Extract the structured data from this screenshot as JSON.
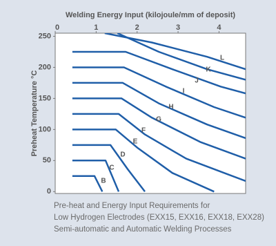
{
  "chart_data": {
    "type": "line",
    "xlabel": "Welding Energy Input (kilojoule/mm of deposit)",
    "ylabel": "Preheat Temperature °C",
    "caption": [
      "Pre-heat and Energy Input Requirements for",
      "Low Hydrogen Electrodes (EXX15, EXX16, EXX18, EXX28)",
      "Semi-automatic and Automatic Welding Processes"
    ],
    "xlim": [
      0,
      4.65
    ],
    "xticks": [
      0,
      1,
      2,
      3,
      4
    ],
    "ylim": [
      -3,
      255
    ],
    "yticks": [
      0,
      50,
      100,
      150,
      200,
      250
    ],
    "color": "#1f5ea8",
    "series": [
      {
        "name": "B",
        "x": [
          0.42,
          0.96,
          1.15
        ],
        "values": [
          25,
          25,
          0
        ]
      },
      {
        "name": "C",
        "x": [
          0.42,
          1.23,
          1.55
        ],
        "values": [
          50,
          50,
          0
        ]
      },
      {
        "name": "D",
        "x": [
          0.42,
          1.35,
          1.77,
          2.19
        ],
        "values": [
          75,
          75,
          36,
          0
        ]
      },
      {
        "name": "E",
        "x": [
          0.42,
          1.48,
          2.02,
          2.86,
          3.88
        ],
        "values": [
          100,
          100,
          70,
          30,
          0
        ]
      },
      {
        "name": "F",
        "x": [
          0.42,
          1.55,
          2.19,
          3.2,
          4.65
        ],
        "values": [
          125,
          125,
          92,
          53,
          17
        ]
      },
      {
        "name": "G",
        "x": [
          0.42,
          1.62,
          2.36,
          3.54,
          4.65
        ],
        "values": [
          150,
          150,
          119,
          80,
          53
        ]
      },
      {
        "name": "H",
        "x": [
          0.42,
          1.65,
          2.53,
          3.71,
          4.65
        ],
        "values": [
          175,
          175,
          142,
          108,
          86
        ]
      },
      {
        "name": "I",
        "x": [
          0.42,
          1.68,
          2.7,
          3.88,
          4.65
        ],
        "values": [
          200,
          200,
          169,
          136,
          119
        ]
      },
      {
        "name": "J",
        "x": [
          0.42,
          1.72,
          2.86,
          4.04,
          4.65
        ],
        "values": [
          225,
          225,
          197,
          169,
          158
        ]
      },
      {
        "name": "K",
        "x": [
          1.52,
          2.53,
          3.71,
          4.65
        ],
        "values": [
          255,
          225,
          197,
          180
        ]
      },
      {
        "name": "L",
        "x": [
          1.21,
          2.36,
          3.71,
          4.65
        ],
        "values": [
          255,
          240,
          217,
          197
        ]
      }
    ]
  }
}
